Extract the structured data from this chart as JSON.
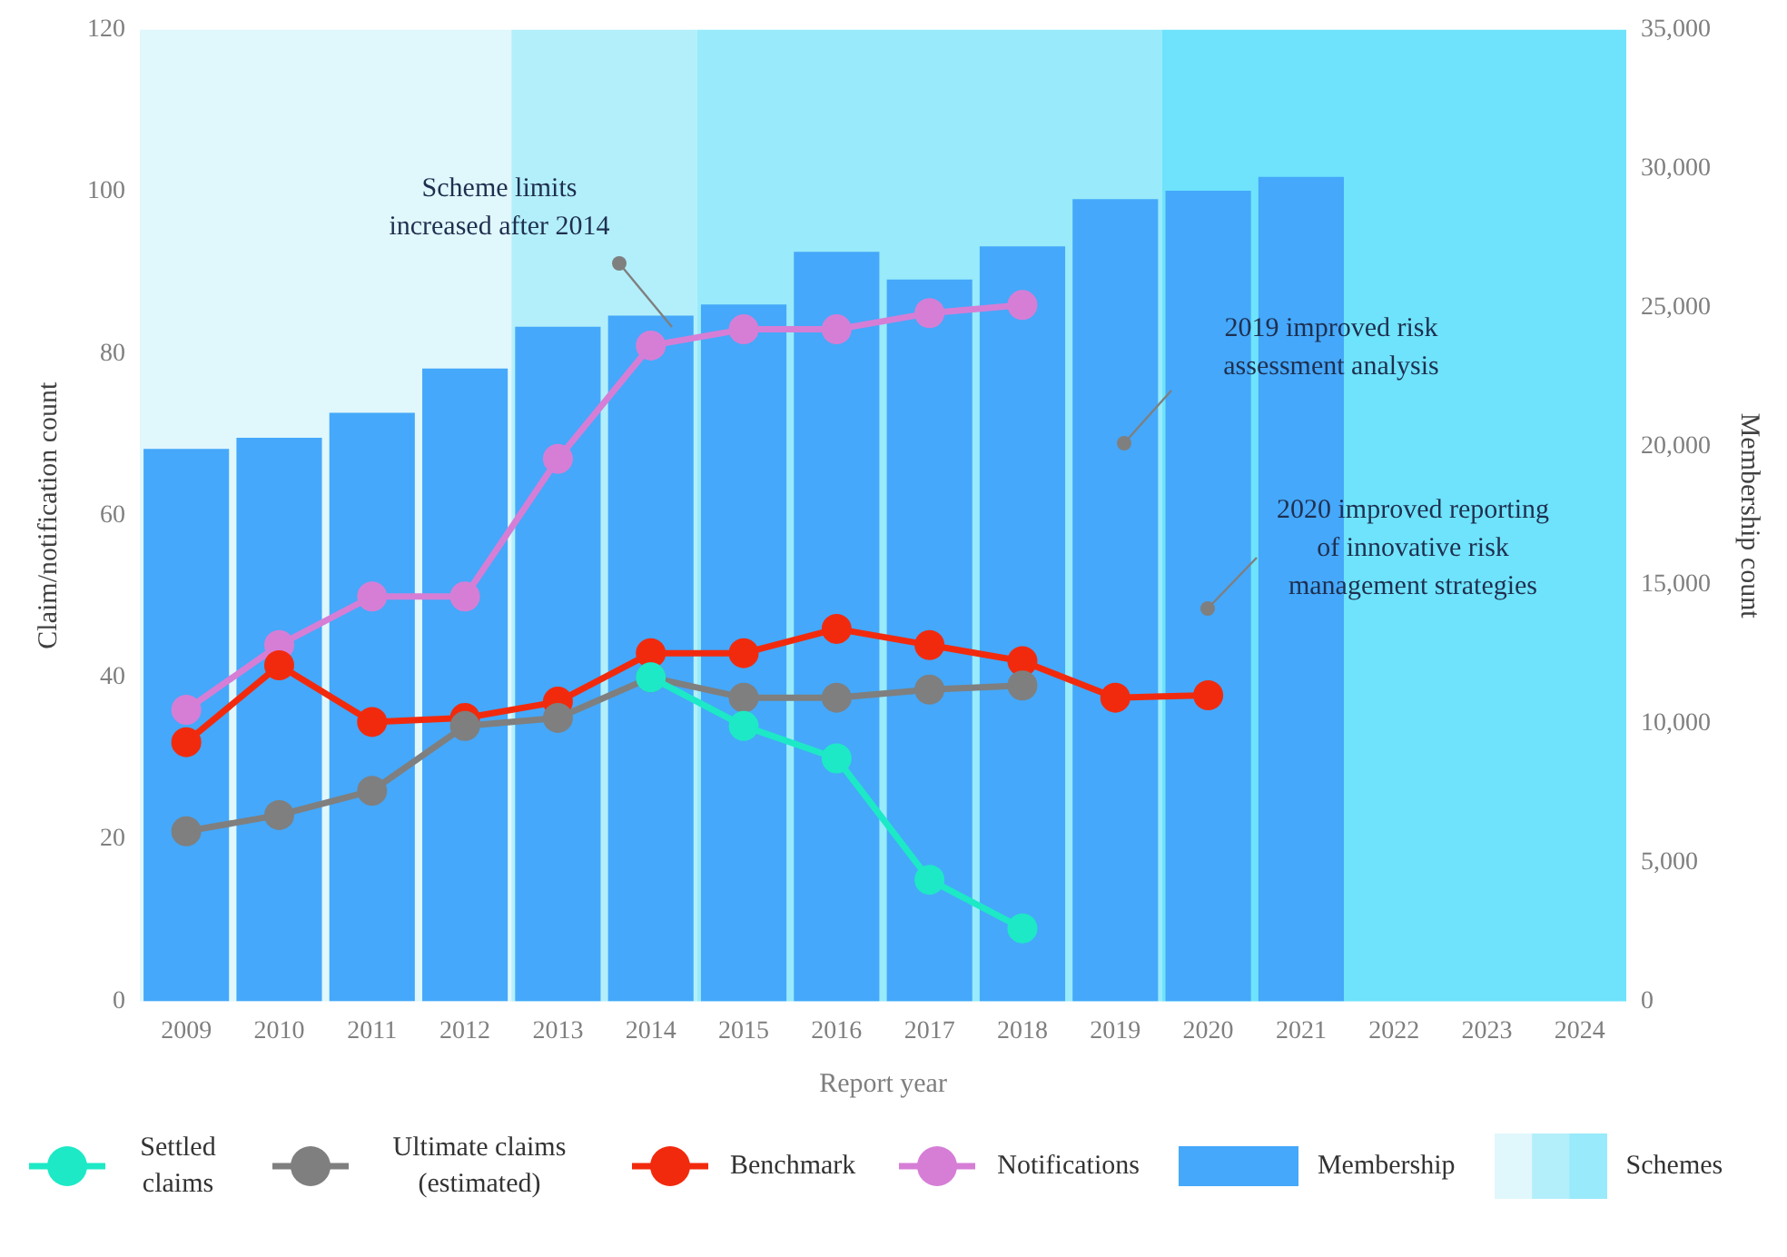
{
  "chart_data": {
    "type": "bar",
    "xlabel": "Report year",
    "ylabel": "Claim/notification count",
    "y2label": "Membership count",
    "categories": [
      "2009",
      "2010",
      "2011",
      "2012",
      "2013",
      "2014",
      "2015",
      "2016",
      "2017",
      "2018",
      "2019",
      "2020",
      "2021",
      "2022",
      "2023",
      "2024"
    ],
    "series": [
      {
        "name": "Settled claims",
        "type": "line",
        "axis": "y",
        "color": "#1de9c6",
        "values": [
          null,
          null,
          null,
          null,
          null,
          40,
          34,
          30,
          15,
          9,
          null,
          null,
          null,
          null,
          null,
          null
        ]
      },
      {
        "name": "Ultimate claims (estimated)",
        "type": "line",
        "axis": "y",
        "color": "#7f7f7f",
        "values": [
          21,
          23,
          26,
          34,
          35,
          40,
          37.5,
          37.5,
          38.5,
          39,
          null,
          null,
          null,
          null,
          null,
          null
        ]
      },
      {
        "name": "Benchmark",
        "type": "line",
        "axis": "y",
        "color": "#f22a0d",
        "values": [
          32,
          41.5,
          34.5,
          35,
          37,
          43,
          43,
          46,
          44,
          42,
          37.5,
          37.8,
          null,
          null,
          null,
          null
        ]
      },
      {
        "name": "Notifications",
        "type": "line",
        "axis": "y",
        "color": "#d67ed6",
        "values": [
          36,
          44,
          50,
          50,
          67,
          81,
          83,
          83,
          85,
          86,
          null,
          null,
          null,
          null,
          null,
          null
        ]
      },
      {
        "name": "Membership",
        "axis": "y2",
        "color": "#45a8fa",
        "values": [
          19900,
          20300,
          21200,
          22800,
          24300,
          24700,
          25100,
          27000,
          26000,
          27200,
          28900,
          29200,
          29700,
          null,
          null,
          null
        ]
      }
    ],
    "ylim": [
      0,
      120
    ],
    "yticks": [
      0,
      20,
      40,
      60,
      80,
      100,
      120
    ],
    "y2lim": [
      0,
      35000
    ],
    "y2ticks": [
      {
        "value": 0,
        "label": "0"
      },
      {
        "value": 5000,
        "label": "5,000"
      },
      {
        "value": 10000,
        "label": "10,000"
      },
      {
        "value": 15000,
        "label": "15,000"
      },
      {
        "value": 20000,
        "label": "20,000"
      },
      {
        "value": 25000,
        "label": "25,000"
      },
      {
        "value": 30000,
        "label": "30,000"
      },
      {
        "value": 35000,
        "label": "35,000"
      }
    ],
    "bands": [
      {
        "axis": "x",
        "from": "2009",
        "to": "2012",
        "color": "#e0f7fc"
      },
      {
        "axis": "x",
        "from": "2013",
        "to": "2014",
        "color": "#b3effb"
      },
      {
        "axis": "x",
        "from": "2015",
        "to": "2019",
        "color": "#99eafa"
      },
      {
        "axis": "x",
        "from": "2020",
        "to": "2024",
        "color": "#6ee3fb"
      }
    ],
    "annotations": [
      "Scheme limits increased after 2014",
      "2019 improved risk assessment analysis",
      "2020 improved reporting of innovative risk management strategies",
      "Schemes"
    ],
    "legend": "bottom",
    "marker": "circle",
    "line_style": "solid",
    "grid": false
  }
}
